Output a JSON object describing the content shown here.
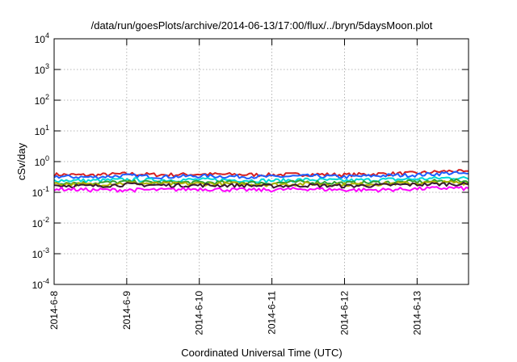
{
  "chart_data": {
    "type": "line",
    "title": "/data/run/goesPlots/archive/2014-06-13/17:00/flux/../bryn/5daysMoon.plot",
    "xlabel": "Coordinated Universal Time (UTC)",
    "ylabel": "cSv/day",
    "y_scale": "log",
    "ylim": [
      0.0001,
      10000
    ],
    "xlim": [
      "2014-06-08 00:00",
      "2014-06-13 17:00"
    ],
    "grid": true,
    "legend": "none",
    "x_ticks": [
      "2014-6-8",
      "2014-6-9",
      "2014-6-10",
      "2014-6-11",
      "2014-6-12",
      "2014-6-13"
    ],
    "y_ticks": [
      {
        "base": "10",
        "exp": "-4",
        "value": 0.0001
      },
      {
        "base": "10",
        "exp": "-3",
        "value": 0.001
      },
      {
        "base": "10",
        "exp": "-2",
        "value": 0.01
      },
      {
        "base": "10",
        "exp": "-1",
        "value": 0.1
      },
      {
        "base": "10",
        "exp": "0",
        "value": 1
      },
      {
        "base": "10",
        "exp": "1",
        "value": 10
      },
      {
        "base": "10",
        "exp": "2",
        "value": 100
      },
      {
        "base": "10",
        "exp": "3",
        "value": 1000
      },
      {
        "base": "10",
        "exp": "4",
        "value": 10000
      }
    ],
    "x": [
      "2014-06-08 00:00",
      "2014-06-08 12:00",
      "2014-06-09 00:00",
      "2014-06-09 12:00",
      "2014-06-10 00:00",
      "2014-06-10 12:00",
      "2014-06-11 00:00",
      "2014-06-11 12:00",
      "2014-06-12 00:00",
      "2014-06-12 12:00",
      "2014-06-13 00:00",
      "2014-06-13 12:00",
      "2014-06-13 17:00"
    ],
    "series": [
      {
        "color": "#d62020",
        "values": [
          0.38,
          0.36,
          0.4,
          0.37,
          0.39,
          0.38,
          0.37,
          0.39,
          0.37,
          0.4,
          0.42,
          0.5,
          0.44
        ]
      },
      {
        "color": "#1f5fff",
        "values": [
          0.33,
          0.31,
          0.35,
          0.32,
          0.34,
          0.33,
          0.32,
          0.34,
          0.32,
          0.35,
          0.37,
          0.43,
          0.38
        ]
      },
      {
        "color": "#00d8d8",
        "values": [
          0.25,
          0.24,
          0.26,
          0.25,
          0.26,
          0.25,
          0.24,
          0.26,
          0.24,
          0.26,
          0.27,
          0.3,
          0.28
        ]
      },
      {
        "color": "#30a030",
        "values": [
          0.21,
          0.2,
          0.22,
          0.21,
          0.21,
          0.21,
          0.2,
          0.22,
          0.2,
          0.21,
          0.22,
          0.24,
          0.23
        ]
      },
      {
        "color": "#b0b000",
        "values": [
          0.19,
          0.18,
          0.2,
          0.19,
          0.19,
          0.19,
          0.18,
          0.19,
          0.18,
          0.19,
          0.2,
          0.21,
          0.2
        ]
      },
      {
        "color": "#3a1a30",
        "values": [
          0.17,
          0.16,
          0.18,
          0.17,
          0.17,
          0.17,
          0.16,
          0.17,
          0.16,
          0.17,
          0.18,
          0.19,
          0.18
        ]
      },
      {
        "color": "#ff00ff",
        "values": [
          0.13,
          0.12,
          0.12,
          0.12,
          0.13,
          0.12,
          0.12,
          0.13,
          0.12,
          0.12,
          0.13,
          0.14,
          0.13
        ]
      }
    ]
  }
}
